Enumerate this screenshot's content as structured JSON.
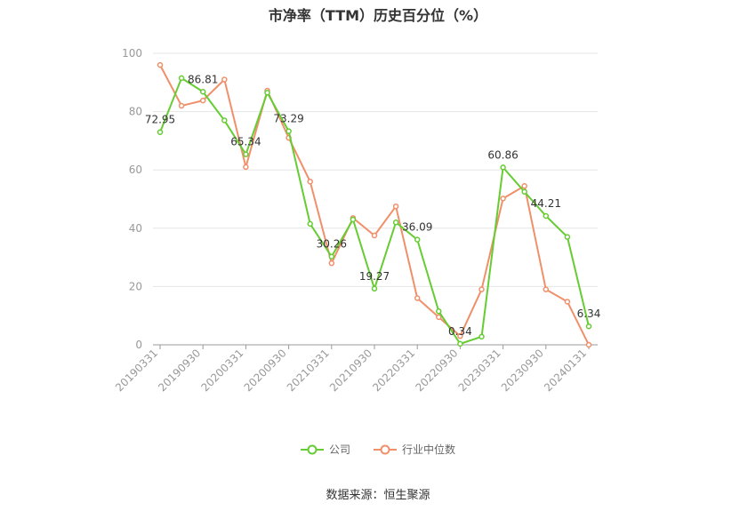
{
  "title": "市净率（TTM）历史百分位（%）",
  "source": "数据来源：恒生聚源",
  "colors": {
    "company": "#66cc33",
    "industry": "#f0906a"
  },
  "chart_data": {
    "type": "line",
    "title": "市净率（TTM）历史百分位（%）",
    "xlabel": "",
    "ylabel": "",
    "ylim": [
      0,
      100
    ],
    "yticks": [
      0,
      20,
      40,
      60,
      80,
      100
    ],
    "grid": true,
    "legend_position": "bottom",
    "x": [
      "20190331",
      "20190630",
      "20190930",
      "20191231",
      "20200331",
      "20200630",
      "20200930",
      "20201231",
      "20210331",
      "20210630",
      "20210930",
      "20211231",
      "20220331",
      "20220630",
      "20220930",
      "20221231",
      "20230331",
      "20230630",
      "20230930",
      "20231231",
      "20240131"
    ],
    "xtick_labels": [
      "20190331",
      "20190930",
      "20200331",
      "20200930",
      "20210331",
      "20210930",
      "20220331",
      "20220930",
      "20230331",
      "20230930",
      "20240131"
    ],
    "series": [
      {
        "name": "公司",
        "values": [
          72.95,
          91.5,
          86.81,
          77.0,
          65.34,
          86.5,
          73.29,
          41.5,
          30.26,
          43.0,
          19.27,
          42.0,
          36.09,
          11.5,
          0.34,
          2.8,
          60.86,
          52.5,
          44.21,
          37.0,
          6.34
        ],
        "labels": [
          "72.95",
          null,
          "86.81",
          null,
          "65.34",
          null,
          "73.29",
          null,
          "30.26",
          null,
          "19.27",
          null,
          "36.09",
          null,
          "0.34",
          null,
          "60.86",
          null,
          "44.21",
          null,
          "6.34"
        ]
      },
      {
        "name": "行业中位数",
        "values": [
          96.0,
          82.0,
          83.8,
          91.0,
          61.0,
          87.2,
          71.0,
          56.0,
          28.0,
          43.5,
          37.5,
          47.5,
          16.0,
          9.5,
          3.0,
          19.0,
          50.2,
          54.5,
          19.0,
          14.8,
          0.0
        ]
      }
    ]
  }
}
